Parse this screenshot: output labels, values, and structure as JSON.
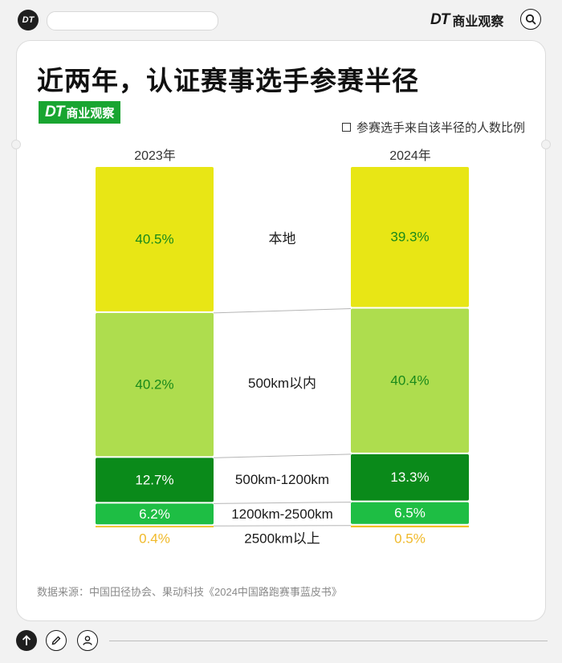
{
  "header": {
    "logo_text": "DT",
    "brand_dt": "DT",
    "brand_name": "商业观察"
  },
  "title": "近两年，认证赛事选手参赛半径",
  "tag": {
    "dt": "DT",
    "name": "商业观察"
  },
  "legend_text": "参赛选手来自该半径的人数比例",
  "source": "数据来源：中国田径协会、果动科技《2024中国路跑赛事蓝皮书》",
  "colors": {
    "local": "#e8e615",
    "within_500": "#aedd4e",
    "r500_1200": "#0a8a1a",
    "r1200_2500": "#1ebe44",
    "above_2500": "#f0c020",
    "label_green": "#1a8a1a",
    "label_yellow": "#f0b92a"
  },
  "chart_data": {
    "type": "bar",
    "stacked": true,
    "unit": "%",
    "categories": [
      "2023年",
      "2024年"
    ],
    "series": [
      {
        "name": "本地",
        "values": [
          40.5,
          39.3
        ]
      },
      {
        "name": "500km以内",
        "values": [
          40.2,
          40.4
        ]
      },
      {
        "name": "500km-1200km",
        "values": [
          12.7,
          13.3
        ]
      },
      {
        "name": "1200km-2500km",
        "values": [
          6.2,
          6.5
        ]
      },
      {
        "name": "2500km以上",
        "values": [
          0.4,
          0.5
        ]
      }
    ],
    "value_labels": [
      [
        "40.5%",
        "39.3%"
      ],
      [
        "40.2%",
        "40.4%"
      ],
      [
        "12.7%",
        "13.3%"
      ],
      [
        "6.2%",
        "6.5%"
      ],
      [
        "0.4%",
        "0.5%"
      ]
    ]
  }
}
